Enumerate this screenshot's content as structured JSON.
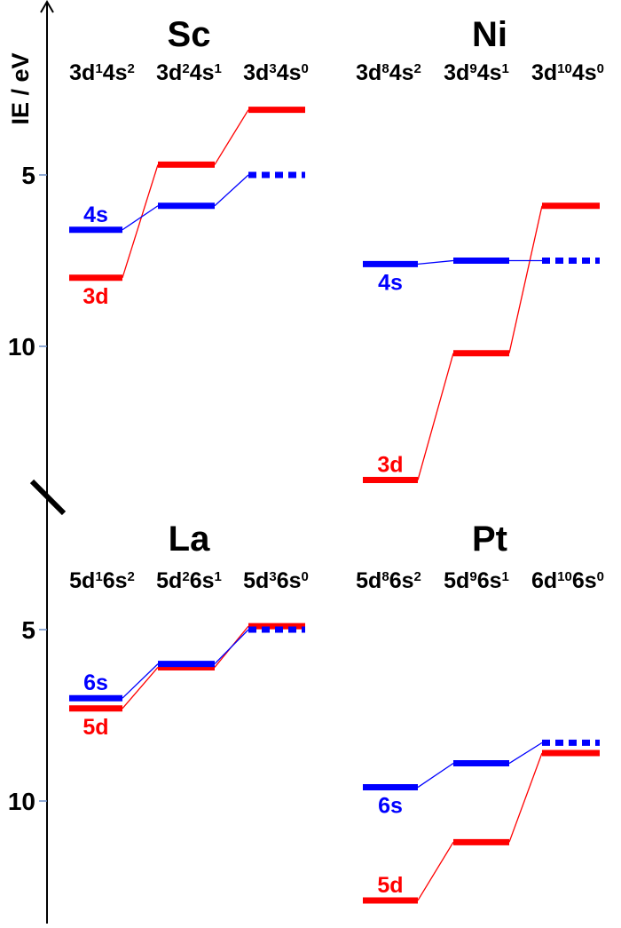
{
  "axis": {
    "ylabel": "IE / eV",
    "ticks": [
      {
        "value": 5,
        "label": "5"
      },
      {
        "value": 10,
        "label": "10"
      }
    ]
  },
  "colors": {
    "d_level": "#ff0000",
    "s_level": "#0000ff",
    "axis": "#000000"
  },
  "chart_data": [
    {
      "type": "level-diagram",
      "element": "Sc",
      "ylabel": "IE / eV",
      "configurations": [
        [
          {
            "t": "3d"
          },
          {
            "t": "1",
            "sup": true
          },
          {
            "t": "4s"
          },
          {
            "t": "2",
            "sup": true
          }
        ],
        [
          {
            "t": "3d"
          },
          {
            "t": "2",
            "sup": true
          },
          {
            "t": "4s"
          },
          {
            "t": "1",
            "sup": true
          }
        ],
        [
          {
            "t": "3d"
          },
          {
            "t": "3",
            "sup": true
          },
          {
            "t": "4s"
          },
          {
            "t": "0",
            "sup": true
          }
        ]
      ],
      "series": [
        {
          "name": "3d",
          "color": "#ff0000",
          "values": [
            8.0,
            4.7,
            3.1
          ],
          "dashed": [
            false,
            false,
            false
          ]
        },
        {
          "name": "4s",
          "color": "#0000ff",
          "values": [
            6.6,
            5.9,
            5.0
          ],
          "dashed": [
            false,
            false,
            true
          ]
        }
      ]
    },
    {
      "type": "level-diagram",
      "element": "Ni",
      "configurations": [
        [
          {
            "t": "3d"
          },
          {
            "t": "8",
            "sup": true
          },
          {
            "t": "4s"
          },
          {
            "t": "2",
            "sup": true
          }
        ],
        [
          {
            "t": "3d"
          },
          {
            "t": "9",
            "sup": true
          },
          {
            "t": "4s"
          },
          {
            "t": "1",
            "sup": true
          }
        ],
        [
          {
            "t": "3d"
          },
          {
            "t": "10",
            "sup": true
          },
          {
            "t": "4s"
          },
          {
            "t": "0",
            "sup": true
          }
        ]
      ],
      "series": [
        {
          "name": "3d",
          "color": "#ff0000",
          "values": [
            13.9,
            10.2,
            5.9
          ],
          "dashed": [
            false,
            false,
            false
          ]
        },
        {
          "name": "4s",
          "color": "#0000ff",
          "values": [
            7.6,
            7.5,
            7.5
          ],
          "dashed": [
            false,
            false,
            true
          ]
        }
      ]
    },
    {
      "type": "level-diagram",
      "element": "La",
      "configurations": [
        [
          {
            "t": "5d"
          },
          {
            "t": "1",
            "sup": true
          },
          {
            "t": "6s"
          },
          {
            "t": "2",
            "sup": true
          }
        ],
        [
          {
            "t": "5d"
          },
          {
            "t": "2",
            "sup": true
          },
          {
            "t": "6s"
          },
          {
            "t": "1",
            "sup": true
          }
        ],
        [
          {
            "t": "5d"
          },
          {
            "t": "3",
            "sup": true
          },
          {
            "t": "6s"
          },
          {
            "t": "0",
            "sup": true
          }
        ]
      ],
      "series": [
        {
          "name": "5d",
          "color": "#ff0000",
          "values": [
            7.3,
            6.1,
            4.9
          ],
          "dashed": [
            false,
            false,
            false
          ]
        },
        {
          "name": "6s",
          "color": "#0000ff",
          "values": [
            7.0,
            6.0,
            5.0
          ],
          "dashed": [
            false,
            false,
            true
          ]
        }
      ]
    },
    {
      "type": "level-diagram",
      "element": "Pt",
      "configurations": [
        [
          {
            "t": "5d"
          },
          {
            "t": "8",
            "sup": true
          },
          {
            "t": "6s"
          },
          {
            "t": "2",
            "sup": true
          }
        ],
        [
          {
            "t": "5d"
          },
          {
            "t": "9",
            "sup": true
          },
          {
            "t": "6s"
          },
          {
            "t": "1",
            "sup": true
          }
        ],
        [
          {
            "t": "6d"
          },
          {
            "t": "10",
            "sup": true
          },
          {
            "t": "6s"
          },
          {
            "t": "0",
            "sup": true
          }
        ]
      ],
      "series": [
        {
          "name": "5d",
          "color": "#ff0000",
          "values": [
            12.9,
            11.2,
            8.6
          ],
          "dashed": [
            false,
            false,
            false
          ]
        },
        {
          "name": "6s",
          "color": "#0000ff",
          "values": [
            9.6,
            8.9,
            8.3
          ],
          "dashed": [
            false,
            false,
            true
          ]
        }
      ]
    }
  ]
}
